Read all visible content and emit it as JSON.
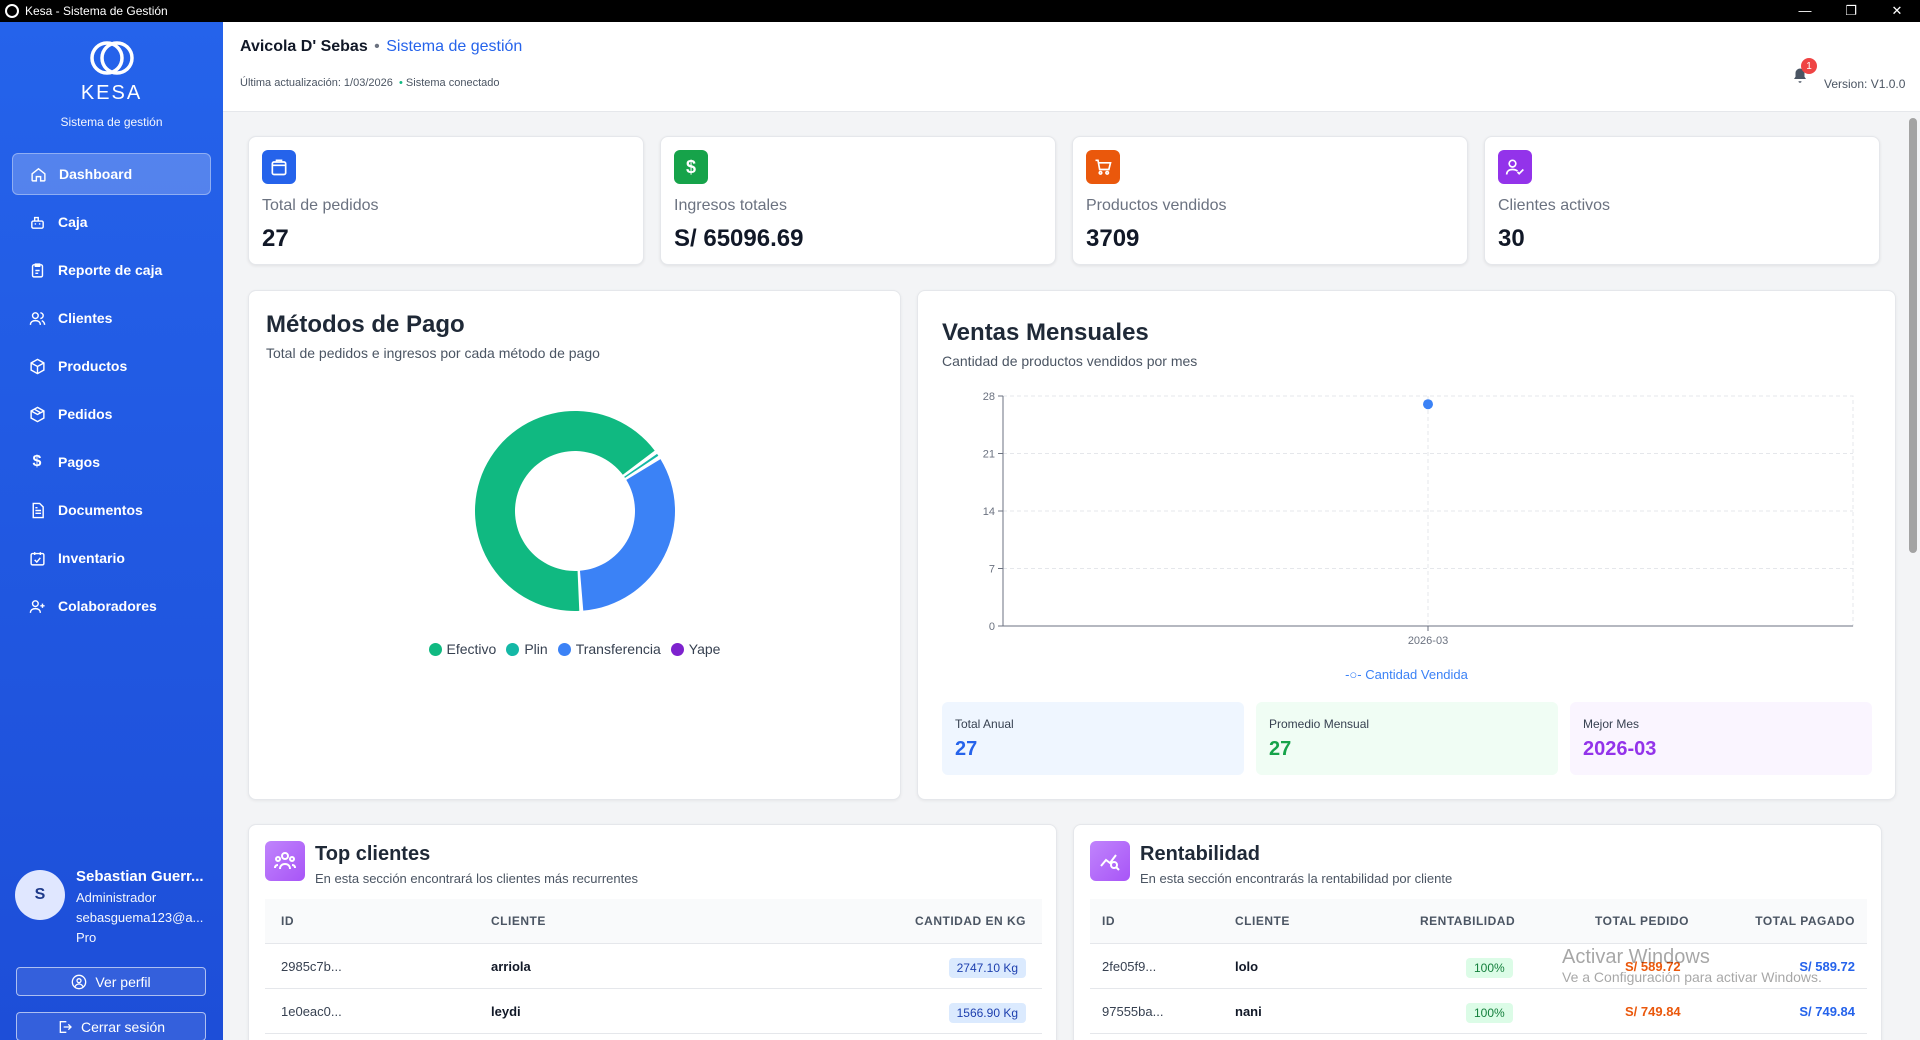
{
  "window": {
    "title": "Kesa - Sistema de Gestión",
    "controls": [
      "—",
      "❐",
      "✕"
    ]
  },
  "sidebar": {
    "brand": "KESA",
    "subtitle": "Sistema de gestión",
    "items": [
      {
        "label": "Dashboard",
        "icon": "home-icon",
        "active": true
      },
      {
        "label": "Caja",
        "icon": "cash-register-icon"
      },
      {
        "label": "Reporte de caja",
        "icon": "clipboard-icon"
      },
      {
        "label": "Clientes",
        "icon": "users-icon"
      },
      {
        "label": "Productos",
        "icon": "box-icon"
      },
      {
        "label": "Pedidos",
        "icon": "package-icon"
      },
      {
        "label": "Pagos",
        "icon": "dollar-icon"
      },
      {
        "label": "Documentos",
        "icon": "document-icon"
      },
      {
        "label": "Inventario",
        "icon": "calendar-check-icon"
      },
      {
        "label": "Colaboradores",
        "icon": "user-plus-icon"
      }
    ],
    "user": {
      "initial": "S",
      "name": "Sebastian Guerr...",
      "role": "Administrador",
      "email": "sebasguema123@a...",
      "plan": "Pro"
    },
    "profile_button": "Ver perfil",
    "logout_button": "Cerrar sesión"
  },
  "header": {
    "company": "Avicola D' Sebas",
    "separator": "•",
    "system": "Sistema de gestión",
    "last_update": "Última actualización: 1/03/2026",
    "status": "Sistema conectado",
    "notifications": "1",
    "version": "Version: V1.0.0"
  },
  "stats": [
    {
      "label": "Total de pedidos",
      "value": "27",
      "color": "#2563eb",
      "icon": "shopping-bag-icon"
    },
    {
      "label": "Ingresos totales",
      "value": "S/ 65096.69",
      "color": "#16a34a",
      "icon": "dollar-icon"
    },
    {
      "label": "Productos vendidos",
      "value": "3709",
      "color": "#ea580c",
      "icon": "cart-icon"
    },
    {
      "label": "Clientes activos",
      "value": "30",
      "color": "#9333ea",
      "icon": "user-check-icon"
    }
  ],
  "payments": {
    "title": "Métodos de Pago",
    "subtitle": "Total de pedidos e ingresos por cada método de pago"
  },
  "monthly": {
    "title": "Ventas Mensuales",
    "subtitle": "Cantidad de productos vendidos por mes",
    "legend": "Cantidad Vendida",
    "kpis": [
      {
        "label": "Total Anual",
        "value": "27",
        "color": "#2563eb",
        "bg": "#eff6ff"
      },
      {
        "label": "Promedio Mensual",
        "value": "27",
        "color": "#16a34a",
        "bg": "#f0fdf4"
      },
      {
        "label": "Mejor Mes",
        "value": "2026-03",
        "color": "#9333ea",
        "bg": "#faf5ff"
      }
    ]
  },
  "chart_data": [
    {
      "type": "pie",
      "variant": "donut",
      "categories": [
        "Efectivo",
        "Plin",
        "Transferencia",
        "Yape"
      ],
      "values": [
        66,
        1,
        33,
        0
      ],
      "colors": [
        "#10b981",
        "#14b8a6",
        "#3b82f6",
        "#7e22ce"
      ],
      "legend_position": "bottom"
    },
    {
      "type": "scatter",
      "x": [
        "2026-03"
      ],
      "series": [
        {
          "name": "Cantidad Vendida",
          "values": [
            27
          ],
          "color": "#3b82f6"
        }
      ],
      "ylim": [
        0,
        28
      ],
      "yticks": [
        "0",
        "7",
        "14",
        "21",
        "28"
      ],
      "grid": true,
      "legend_position": "bottom"
    }
  ],
  "top_clients": {
    "title": "Top clientes",
    "subtitle": "En esta sección encontrará los clientes más recurrentes",
    "columns": [
      "ID",
      "CLIENTE",
      "CANTIDAD EN KG"
    ],
    "rows": [
      {
        "id": "2985c7b...",
        "client": "arriola",
        "kg": "2747.10 Kg"
      },
      {
        "id": "1e0eac0...",
        "client": "leydi",
        "kg": "1566.90 Kg"
      }
    ]
  },
  "profitability": {
    "title": "Rentabilidad",
    "subtitle": "En esta sección encontrarás la rentabilidad por cliente",
    "columns": [
      "ID",
      "CLIENTE",
      "RENTABILIDAD",
      "TOTAL PEDIDO",
      "TOTAL PAGADO"
    ],
    "rows": [
      {
        "id": "2fe05f9...",
        "client": "lolo",
        "pct": "100%",
        "ordered": "S/ 589.72",
        "paid": "S/ 589.72"
      },
      {
        "id": "97555ba...",
        "client": "nani",
        "pct": "100%",
        "ordered": "S/ 749.84",
        "paid": "S/ 749.84"
      }
    ]
  },
  "watermark": {
    "line1": "Activar Windows",
    "line2": "Ve a Configuración para activar Windows."
  }
}
